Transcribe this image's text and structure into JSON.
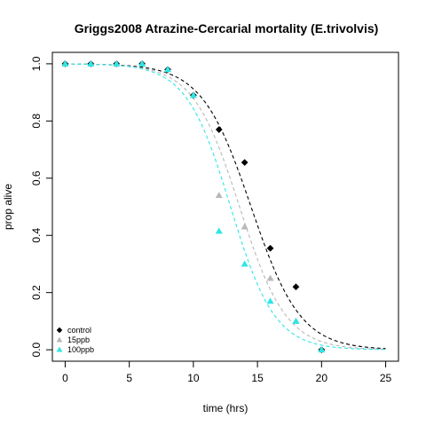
{
  "chart_data": {
    "type": "scatter",
    "title": "Griggs2008 Atrazine-Cercarial mortality (E.trivolvis)",
    "xlabel": "time (hrs)",
    "ylabel": "prop alive",
    "xlim": [
      -1,
      26
    ],
    "ylim": [
      -0.04,
      1.04
    ],
    "x_ticks": [
      0,
      5,
      10,
      15,
      20,
      25
    ],
    "y_ticks": [
      0.0,
      0.2,
      0.4,
      0.6,
      0.8,
      1.0
    ],
    "x_tick_labels": [
      "0",
      "5",
      "10",
      "15",
      "20",
      "25"
    ],
    "y_tick_labels": [
      "0.0",
      "0.2",
      "0.4",
      "0.6",
      "0.8",
      "1.0"
    ],
    "legend_position": "bottom-left",
    "grid": false,
    "series": [
      {
        "name": "control",
        "color": "#000000",
        "marker": "diamond",
        "points": [
          {
            "x": 0,
            "y": 1.0
          },
          {
            "x": 2,
            "y": 1.0
          },
          {
            "x": 4,
            "y": 1.0
          },
          {
            "x": 6,
            "y": 1.0
          },
          {
            "x": 8,
            "y": 0.98
          },
          {
            "x": 10,
            "y": 0.89
          },
          {
            "x": 12,
            "y": 0.77
          },
          {
            "x": 14,
            "y": 0.655
          },
          {
            "x": 16,
            "y": 0.355
          },
          {
            "x": 18,
            "y": 0.22
          },
          {
            "x": 20,
            "y": 0.0
          }
        ],
        "curve": {
          "midpoint": 14.5,
          "steepness": 0.52
        }
      },
      {
        "name": "15ppb",
        "color": "#b8b8b8",
        "marker": "triangle",
        "points": [
          {
            "x": 0,
            "y": 1.0
          },
          {
            "x": 2,
            "y": 1.0
          },
          {
            "x": 4,
            "y": 1.0
          },
          {
            "x": 6,
            "y": 1.0
          },
          {
            "x": 8,
            "y": 0.98
          },
          {
            "x": 10,
            "y": 0.89
          },
          {
            "x": 12,
            "y": 0.54
          },
          {
            "x": 14,
            "y": 0.43
          },
          {
            "x": 16,
            "y": 0.25
          },
          {
            "x": 18,
            "y": 0.1
          },
          {
            "x": 20,
            "y": 0.0
          }
        ],
        "curve": {
          "midpoint": 13.6,
          "steepness": 0.55
        }
      },
      {
        "name": "100ppb",
        "color": "#2ee6e6",
        "marker": "triangle",
        "points": [
          {
            "x": 0,
            "y": 1.0
          },
          {
            "x": 2,
            "y": 1.0
          },
          {
            "x": 4,
            "y": 1.0
          },
          {
            "x": 6,
            "y": 1.0
          },
          {
            "x": 8,
            "y": 0.98
          },
          {
            "x": 10,
            "y": 0.89
          },
          {
            "x": 12,
            "y": 0.415
          },
          {
            "x": 14,
            "y": 0.3
          },
          {
            "x": 16,
            "y": 0.17
          },
          {
            "x": 18,
            "y": 0.1
          },
          {
            "x": 20,
            "y": 0.0
          }
        ],
        "curve": {
          "midpoint": 12.9,
          "steepness": 0.58
        }
      }
    ]
  }
}
